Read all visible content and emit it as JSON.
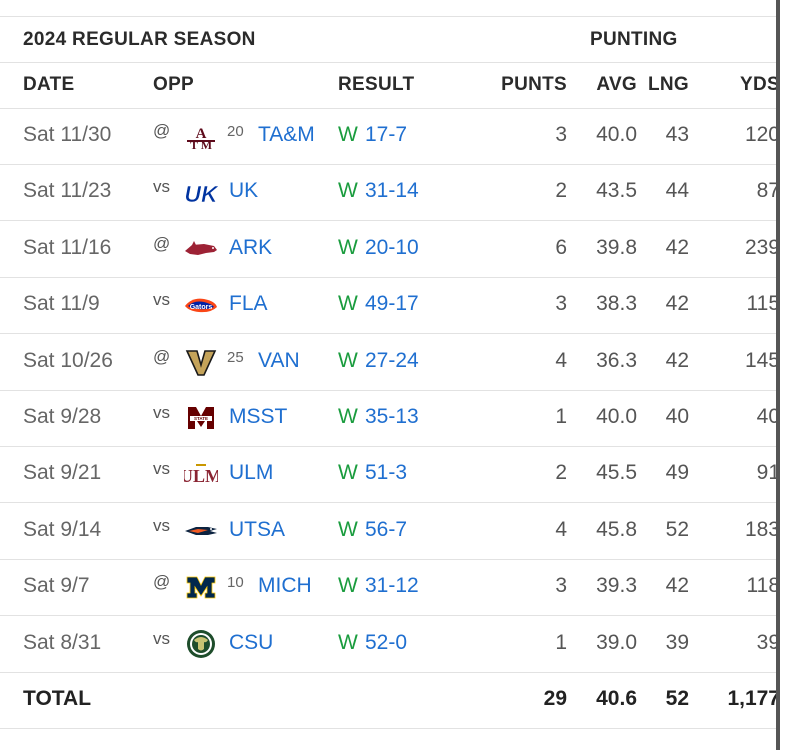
{
  "season_title": "2024 REGULAR SEASON",
  "group_title": "PUNTING",
  "columns": {
    "date": "DATE",
    "opp": "OPP",
    "result": "RESULT",
    "punts": "PUNTS",
    "avg": "AVG",
    "lng": "LNG",
    "yds": "YDS"
  },
  "games": [
    {
      "date": "Sat 11/30",
      "loc": "@",
      "logo": "texas-am-logo",
      "rank": "20",
      "opp": "TA&M",
      "wl": "W",
      "score": "17-7",
      "punts": "3",
      "avg": "40.0",
      "lng": "43",
      "yds": "120"
    },
    {
      "date": "Sat 11/23",
      "loc": "vs",
      "logo": "kentucky-logo",
      "rank": "",
      "opp": "UK",
      "wl": "W",
      "score": "31-14",
      "punts": "2",
      "avg": "43.5",
      "lng": "44",
      "yds": "87"
    },
    {
      "date": "Sat 11/16",
      "loc": "@",
      "logo": "arkansas-logo",
      "rank": "",
      "opp": "ARK",
      "wl": "W",
      "score": "20-10",
      "punts": "6",
      "avg": "39.8",
      "lng": "42",
      "yds": "239"
    },
    {
      "date": "Sat 11/9",
      "loc": "vs",
      "logo": "florida-logo",
      "rank": "",
      "opp": "FLA",
      "wl": "W",
      "score": "49-17",
      "punts": "3",
      "avg": "38.3",
      "lng": "42",
      "yds": "115"
    },
    {
      "date": "Sat 10/26",
      "loc": "@",
      "logo": "vanderbilt-logo",
      "rank": "25",
      "opp": "VAN",
      "wl": "W",
      "score": "27-24",
      "punts": "4",
      "avg": "36.3",
      "lng": "42",
      "yds": "145"
    },
    {
      "date": "Sat 9/28",
      "loc": "vs",
      "logo": "mississippi-state-logo",
      "rank": "",
      "opp": "MSST",
      "wl": "W",
      "score": "35-13",
      "punts": "1",
      "avg": "40.0",
      "lng": "40",
      "yds": "40"
    },
    {
      "date": "Sat 9/21",
      "loc": "vs",
      "logo": "ulm-logo",
      "rank": "",
      "opp": "ULM",
      "wl": "W",
      "score": "51-3",
      "punts": "2",
      "avg": "45.5",
      "lng": "49",
      "yds": "91"
    },
    {
      "date": "Sat 9/14",
      "loc": "vs",
      "logo": "utsa-logo",
      "rank": "",
      "opp": "UTSA",
      "wl": "W",
      "score": "56-7",
      "punts": "4",
      "avg": "45.8",
      "lng": "52",
      "yds": "183"
    },
    {
      "date": "Sat 9/7",
      "loc": "@",
      "logo": "michigan-logo",
      "rank": "10",
      "opp": "MICH",
      "wl": "W",
      "score": "31-12",
      "punts": "3",
      "avg": "39.3",
      "lng": "42",
      "yds": "118"
    },
    {
      "date": "Sat 8/31",
      "loc": "vs",
      "logo": "colorado-state-logo",
      "rank": "",
      "opp": "CSU",
      "wl": "W",
      "score": "52-0",
      "punts": "1",
      "avg": "39.0",
      "lng": "39",
      "yds": "39"
    }
  ],
  "total": {
    "label": "TOTAL",
    "punts": "29",
    "avg": "40.6",
    "lng": "52",
    "yds": "1,177"
  },
  "colors": {
    "win": "#1a9c3e",
    "link": "#1f6fd0",
    "divider": "#e2e2e2",
    "text": "#222222",
    "muted": "#666666"
  }
}
